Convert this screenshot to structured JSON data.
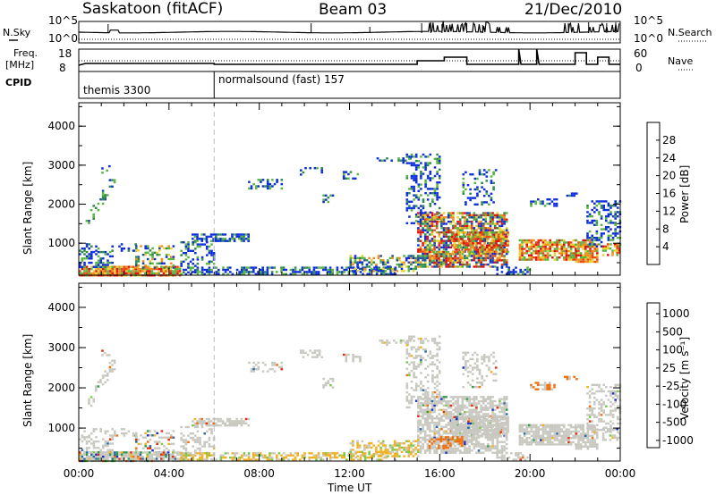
{
  "header": {
    "station": "Saskatoon (fitACF)",
    "beam": "Beam 03",
    "date": "21/Dec/2010"
  },
  "left_labels": {
    "nsky": "N.Sky",
    "freq": "Freq.",
    "freq_unit": "[MHz]",
    "cpid": "CPID"
  },
  "right_labels": {
    "nsearch": "N.Search",
    "nave": "Nave"
  },
  "noise_panel": {
    "left_ticks": [
      "10^5",
      "10^0"
    ],
    "right_ticks": [
      "10^5",
      "10^0"
    ]
  },
  "freq_panel": {
    "left_ticks": [
      "18",
      "8"
    ],
    "right_ticks": [
      "60",
      "0"
    ]
  },
  "cpid_panel": {
    "segments": [
      {
        "label": "themis 3300",
        "start": 0
      },
      {
        "label": "normalsound (fast) 157",
        "start": 6
      }
    ]
  },
  "chart_data": [
    {
      "type": "heatmap",
      "name": "power",
      "ylabel": "Slant Range [km]",
      "xlabel": "",
      "x_ticks": [
        "00:00",
        "04:00",
        "08:00",
        "12:00",
        "16:00",
        "20:00",
        "00:00"
      ],
      "y_ticks": [
        "1000",
        "2000",
        "3000",
        "4000"
      ],
      "xlim": [
        0,
        24
      ],
      "ylim": [
        180,
        4600
      ],
      "colorbar": {
        "label": "Power [dB]",
        "ticks": [
          "4",
          "8",
          "12",
          "16",
          "20",
          "24",
          "28"
        ],
        "colors": [
          "#0b2ddb",
          "#1f4ea3",
          "#2e8a4a",
          "#58b540",
          "#e9d02f",
          "#f08d1a",
          "#e84a12",
          "#e01010"
        ]
      }
    },
    {
      "type": "heatmap",
      "name": "velocity",
      "ylabel": "Slant Range [km]",
      "xlabel": "Time UT",
      "x_ticks": [
        "00:00",
        "04:00",
        "08:00",
        "12:00",
        "16:00",
        "20:00",
        "00:00"
      ],
      "y_ticks": [
        "1000",
        "2000",
        "3000",
        "4000"
      ],
      "xlim": [
        0,
        24
      ],
      "ylim": [
        180,
        4600
      ],
      "colorbar": {
        "label": "Velocity [m s⁻¹]",
        "ticks": [
          "1000",
          "500",
          "100",
          "25",
          "-25",
          "-100",
          "-500",
          "-1000"
        ],
        "colors": [
          "#1830c8",
          "#2a6aa8",
          "#2f9a4a",
          "#7cc94a",
          "#c8c8c0",
          "#c8c8c0",
          "#f0b020",
          "#f07010",
          "#e03010"
        ]
      }
    }
  ]
}
